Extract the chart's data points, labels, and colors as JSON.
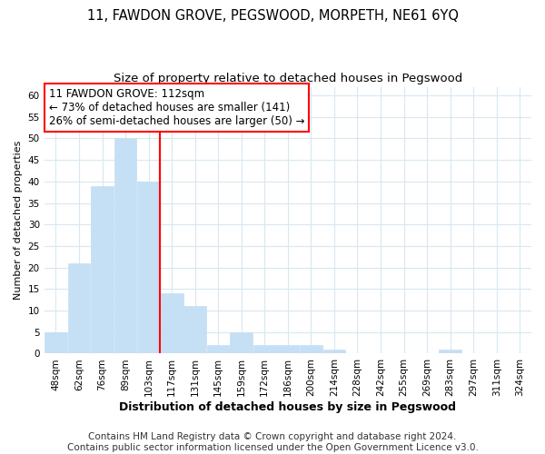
{
  "title": "11, FAWDON GROVE, PEGSWOOD, MORPETH, NE61 6YQ",
  "subtitle": "Size of property relative to detached houses in Pegswood",
  "xlabel": "Distribution of detached houses by size in Pegswood",
  "ylabel": "Number of detached properties",
  "bar_color": "#c5dff5",
  "vline_color": "red",
  "vline_x_idx": 4,
  "annotation_text": "11 FAWDON GROVE: 112sqm\n← 73% of detached houses are smaller (141)\n26% of semi-detached houses are larger (50) →",
  "bins": [
    "48sqm",
    "62sqm",
    "76sqm",
    "89sqm",
    "103sqm",
    "117sqm",
    "131sqm",
    "145sqm",
    "159sqm",
    "172sqm",
    "186sqm",
    "200sqm",
    "214sqm",
    "228sqm",
    "242sqm",
    "255sqm",
    "269sqm",
    "283sqm",
    "297sqm",
    "311sqm",
    "324sqm"
  ],
  "counts": [
    5,
    21,
    39,
    50,
    40,
    14,
    11,
    2,
    5,
    2,
    2,
    2,
    1,
    0,
    0,
    0,
    0,
    1,
    0,
    0,
    0
  ],
  "ylim": [
    0,
    62
  ],
  "yticks": [
    0,
    5,
    10,
    15,
    20,
    25,
    30,
    35,
    40,
    45,
    50,
    55,
    60
  ],
  "grid_color": "#d8e8f0",
  "footer": "Contains HM Land Registry data © Crown copyright and database right 2024.\nContains public sector information licensed under the Open Government Licence v3.0.",
  "title_fontsize": 10.5,
  "subtitle_fontsize": 9.5,
  "footer_fontsize": 7.5,
  "annotation_fontsize": 8.5,
  "axis_label_fontsize": 9,
  "ylabel_fontsize": 8,
  "tick_fontsize": 7.5
}
